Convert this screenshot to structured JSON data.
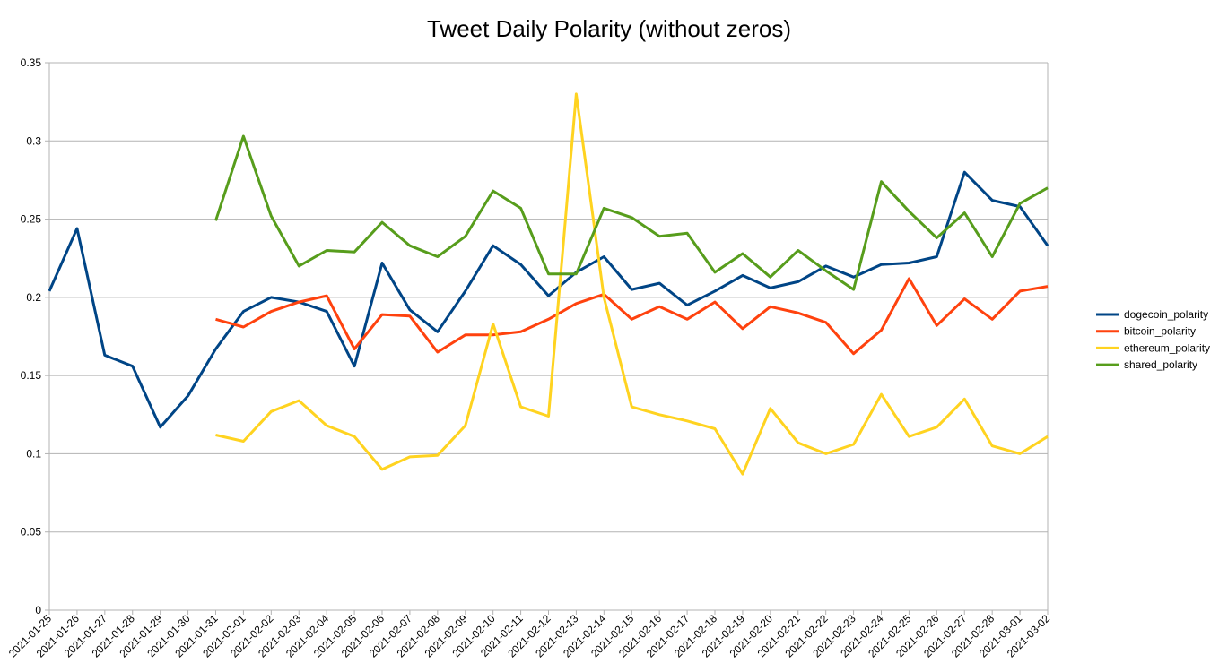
{
  "chart_data": {
    "type": "line",
    "title": "Tweet Daily Polarity (without zeros)",
    "xlabel": "",
    "ylabel": "",
    "ylim": [
      0,
      0.35
    ],
    "yticks": [
      "0",
      "0.05",
      "0.1",
      "0.15",
      "0.2",
      "0.25",
      "0.3",
      "0.35"
    ],
    "grid": "horizontal",
    "legend_position": "right",
    "categories": [
      "2021-01-25",
      "2021-01-26",
      "2021-01-27",
      "2021-01-28",
      "2021-01-29",
      "2021-01-30",
      "2021-01-31",
      "2021-02-01",
      "2021-02-02",
      "2021-02-03",
      "2021-02-04",
      "2021-02-05",
      "2021-02-06",
      "2021-02-07",
      "2021-02-08",
      "2021-02-09",
      "2021-02-10",
      "2021-02-11",
      "2021-02-12",
      "2021-02-13",
      "2021-02-14",
      "2021-02-15",
      "2021-02-16",
      "2021-02-17",
      "2021-02-18",
      "2021-02-19",
      "2021-02-20",
      "2021-02-21",
      "2021-02-22",
      "2021-02-23",
      "2021-02-24",
      "2021-02-25",
      "2021-02-26",
      "2021-02-27",
      "2021-02-28",
      "2021-03-01",
      "2021-03-02"
    ],
    "series": [
      {
        "name": "dogecoin_polarity",
        "color": "#004586",
        "values": [
          0.204,
          0.244,
          0.163,
          0.156,
          0.117,
          0.137,
          0.167,
          0.191,
          0.2,
          0.197,
          0.191,
          0.156,
          0.222,
          0.192,
          0.178,
          0.204,
          0.233,
          0.221,
          0.201,
          0.216,
          0.226,
          0.205,
          0.209,
          0.195,
          0.204,
          0.214,
          0.206,
          0.21,
          0.22,
          0.213,
          0.221,
          0.222,
          0.226,
          0.28,
          0.262,
          0.258,
          0.233
        ]
      },
      {
        "name": "bitcoin_polarity",
        "color": "#ff420e",
        "values": [
          null,
          null,
          null,
          null,
          null,
          null,
          0.186,
          0.181,
          0.191,
          0.197,
          0.201,
          0.167,
          0.189,
          0.188,
          0.165,
          0.176,
          0.176,
          0.178,
          0.186,
          0.196,
          0.202,
          0.186,
          0.194,
          0.186,
          0.197,
          0.18,
          0.194,
          0.19,
          0.184,
          0.164,
          0.179,
          0.212,
          0.182,
          0.199,
          0.186,
          0.204,
          0.207
        ]
      },
      {
        "name": "ethereum_polarity",
        "color": "#ffd320",
        "values": [
          null,
          null,
          null,
          null,
          null,
          null,
          0.112,
          0.108,
          0.127,
          0.134,
          0.118,
          0.111,
          0.09,
          0.098,
          0.099,
          0.118,
          0.183,
          0.13,
          0.124,
          0.33,
          0.2,
          0.13,
          0.125,
          0.121,
          0.116,
          0.087,
          0.129,
          0.107,
          0.1,
          0.106,
          0.138,
          0.111,
          0.117,
          0.135,
          0.105,
          0.1,
          0.111
        ]
      },
      {
        "name": "shared_polarity",
        "color": "#579d1c",
        "values": [
          null,
          null,
          null,
          null,
          null,
          null,
          0.249,
          0.303,
          0.252,
          0.22,
          0.23,
          0.229,
          0.248,
          0.233,
          0.226,
          0.239,
          0.268,
          0.257,
          0.215,
          0.215,
          0.257,
          0.251,
          0.239,
          0.241,
          0.216,
          0.228,
          0.213,
          0.23,
          0.217,
          0.205,
          0.274,
          0.255,
          0.238,
          0.254,
          0.226,
          0.26,
          0.27
        ]
      }
    ]
  }
}
